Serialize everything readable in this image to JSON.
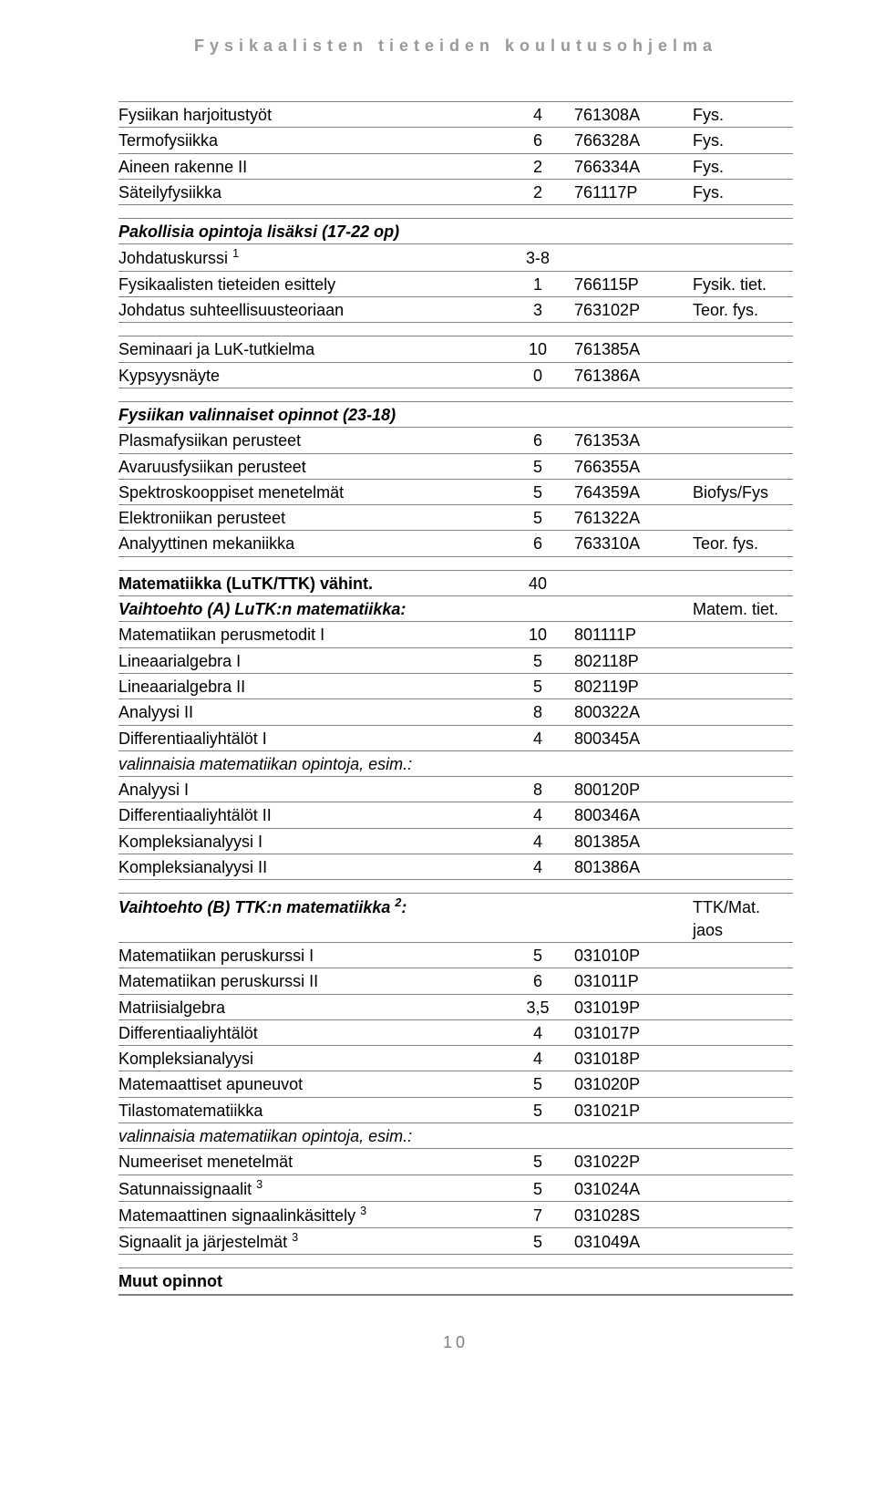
{
  "header": "Fysikaalisten tieteiden koulutusohjelma",
  "page_number": "10",
  "blockA": [
    {
      "name": "Fysiikan harjoitustyöt",
      "op": "4",
      "code": "761308A",
      "note": "Fys."
    },
    {
      "name": "Termofysiikka",
      "op": "6",
      "code": "766328A",
      "note": "Fys."
    },
    {
      "name": "Aineen rakenne II",
      "op": "2",
      "code": "766334A",
      "note": "Fys."
    },
    {
      "name": "Säteilyfysiikka",
      "op": "2",
      "code": "761117P",
      "note": "Fys."
    }
  ],
  "blockB_title": "Pakollisia opintoja lisäksi (17-22 op)",
  "blockB": [
    {
      "name": "Johdatuskurssi ",
      "sup": "1",
      "op": "3-8",
      "code": "",
      "note": ""
    },
    {
      "name": "Fysikaalisten tieteiden esittely",
      "op": "1",
      "code": "766115P",
      "note": "Fysik. tiet."
    },
    {
      "name": "Johdatus suhteellisuusteoriaan",
      "op": "3",
      "code": "763102P",
      "note": "Teor. fys."
    }
  ],
  "blockC": [
    {
      "name": "Seminaari ja LuK-tutkielma",
      "op": "10",
      "code": "761385A",
      "note": ""
    },
    {
      "name": "Kypsyysnäyte",
      "op": "0",
      "code": "761386A",
      "note": ""
    }
  ],
  "blockD_title": "Fysiikan valinnaiset opinnot (23-18)",
  "blockD": [
    {
      "name": "Plasmafysiikan perusteet",
      "op": "6",
      "code": "761353A",
      "note": ""
    },
    {
      "name": "Avaruusfysiikan perusteet",
      "op": "5",
      "code": "766355A",
      "note": ""
    },
    {
      "name": "Spektroskooppiset menetelmät",
      "op": "5",
      "code": "764359A",
      "note": "Biofys/Fys"
    },
    {
      "name": "Elektroniikan perusteet",
      "op": "5",
      "code": "761322A",
      "note": ""
    },
    {
      "name": "Analyyttinen mekaniikka",
      "op": "6",
      "code": "763310A",
      "note": "Teor. fys."
    }
  ],
  "matematiikka_title": "Matematiikka (LuTK/TTK) vähint.",
  "matematiikka_op": "40",
  "vaihtoA_title": "Vaihtoehto (A) LuTK:n matematiikka:",
  "vaihtoA_note": "Matem. tiet.",
  "vaihtoA1": [
    {
      "name": "Matematiikan perusmetodit I",
      "op": "10",
      "code": "801111P"
    },
    {
      "name": "Lineaarialgebra I",
      "op": "5",
      "code": "802118P"
    },
    {
      "name": "Lineaarialgebra II",
      "op": "5",
      "code": "802119P"
    },
    {
      "name": "Analyysi II",
      "op": "8",
      "code": "800322A"
    },
    {
      "name": "Differentiaaliyhtälöt I",
      "op": "4",
      "code": "800345A"
    }
  ],
  "vaihtoA_valinn": "valinnaisia matematiikan opintoja, esim.:",
  "vaihtoA2": [
    {
      "name": "Analyysi I",
      "op": "8",
      "code": "800120P"
    },
    {
      "name": "Differentiaaliyhtälöt II",
      "op": "4",
      "code": "800346A"
    },
    {
      "name": "Kompleksianalyysi I",
      "op": "4",
      "code": "801385A"
    },
    {
      "name": "Kompleksianalyysi II",
      "op": "4",
      "code": "801386A"
    }
  ],
  "vaihtoB_title_pre": "Vaihtoehto (B) TTK:n matematiikka ",
  "vaihtoB_title_post": ":",
  "vaihtoB_note": "TTK/Mat. jaos",
  "vaihtoB1": [
    {
      "name": "Matematiikan peruskurssi I",
      "op": "5",
      "code": "031010P"
    },
    {
      "name": "Matematiikan peruskurssi II",
      "op": "6",
      "code": "031011P"
    },
    {
      "name": "Matriisialgebra",
      "op": "3,5",
      "code": "031019P"
    },
    {
      "name": "Differentiaaliyhtälöt",
      "op": "4",
      "code": "031017P"
    },
    {
      "name": "Kompleksianalyysi",
      "op": "4",
      "code": "031018P"
    },
    {
      "name": "Matemaattiset apuneuvot",
      "op": "5",
      "code": "031020P"
    },
    {
      "name": "Tilastomatematiikka",
      "op": "5",
      "code": "031021P"
    }
  ],
  "vaihtoB_valinn": "valinnaisia matematiikan opintoja, esim.:",
  "vaihtoB2": [
    {
      "name": "Numeeriset menetelmät",
      "sup": "",
      "op": "5",
      "code": "031022P"
    },
    {
      "name": "Satunnaissignaalit ",
      "sup": "3",
      "op": "5",
      "code": "031024A"
    },
    {
      "name": "Matemaattinen signaalinkäsittely ",
      "sup": "3",
      "op": "7",
      "code": "031028S"
    },
    {
      "name": "Signaalit ja järjestelmät ",
      "sup": "3",
      "op": "5",
      "code": "031049A"
    }
  ],
  "muut": "Muut opinnot"
}
